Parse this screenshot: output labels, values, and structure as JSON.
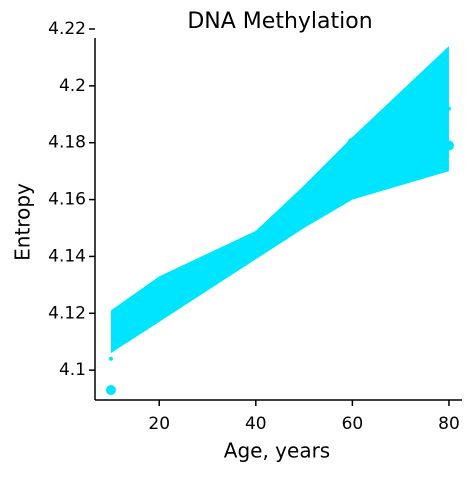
{
  "chart_data": {
    "type": "scatter",
    "title": "DNA Methylation",
    "x_label": "Age, years",
    "y_label": "Entropy",
    "xlim": [
      6.7,
      82.7
    ],
    "xticks": [
      20,
      40,
      60,
      80
    ],
    "ylim": [
      4.0895,
      4.22
    ],
    "yticks": [
      4.1,
      4.12,
      4.14,
      4.16,
      4.18,
      4.2,
      4.22
    ],
    "band": {
      "color": "#00e5ff",
      "x": [
        10,
        20,
        30,
        40,
        50,
        60,
        70,
        80
      ],
      "upper": [
        4.121,
        4.133,
        4.141,
        4.149,
        4.165,
        4.182,
        4.198,
        4.214
      ],
      "lower": [
        4.106,
        4.117,
        4.128,
        4.139,
        4.15,
        4.16,
        4.165,
        4.17
      ]
    },
    "series": [
      {
        "color": "#00e5ff",
        "x": [
          10,
          50,
          60,
          80
        ],
        "values": [
          4.093,
          4.162,
          4.18,
          4.179
        ],
        "size": 5
      },
      {
        "color": "#00e5ff",
        "x": [
          10,
          80
        ],
        "values": [
          4.104,
          4.192
        ],
        "size": 2
      }
    ]
  }
}
